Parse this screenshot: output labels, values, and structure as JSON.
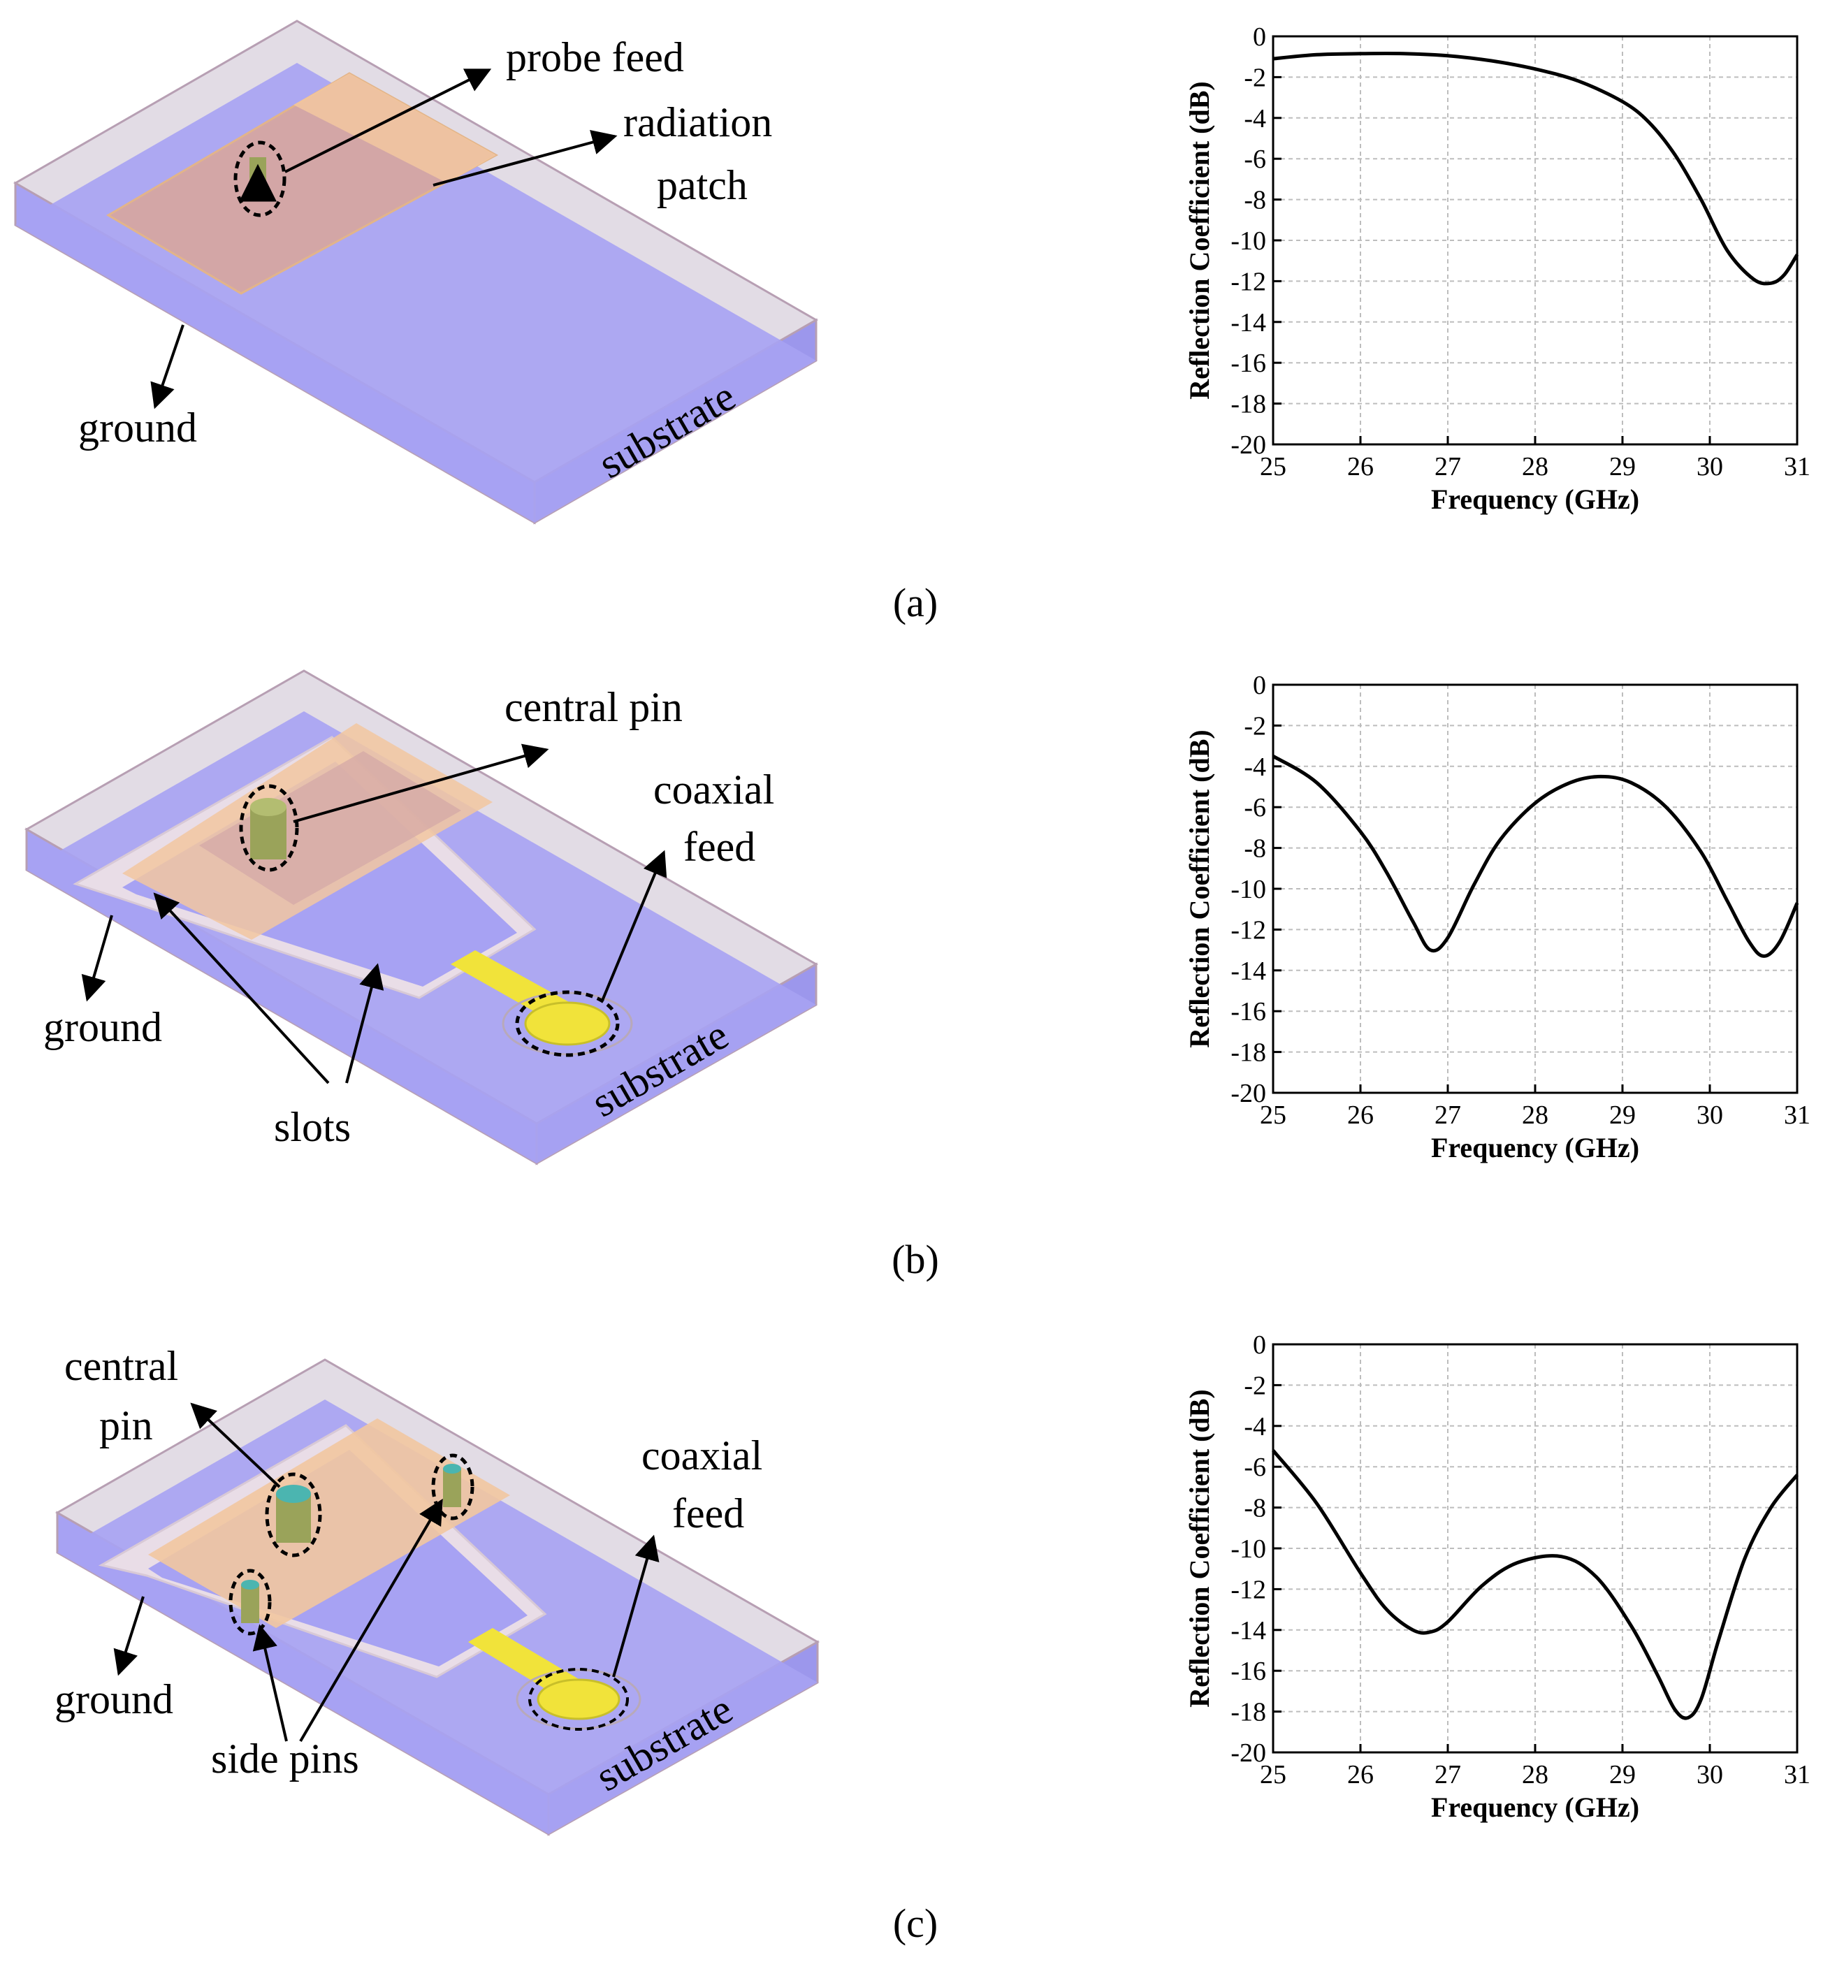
{
  "figure": {
    "panels": [
      {
        "caption": "(a)",
        "diagram_labels": {
          "probe_feed": "probe feed",
          "radiation_line1": "radiation",
          "radiation_line2": "patch",
          "ground": "ground",
          "substrate": "substrate"
        }
      },
      {
        "caption": "(b)",
        "diagram_labels": {
          "central_pin": "central pin",
          "coaxial_line1": "coaxial",
          "coaxial_line2": "feed",
          "ground": "ground",
          "slots": "slots",
          "substrate": "substrate"
        }
      },
      {
        "caption": "(c)",
        "diagram_labels": {
          "central_line1": "central",
          "central_line2": "pin",
          "coaxial_line1": "coaxial",
          "coaxial_line2": "feed",
          "ground": "ground",
          "side_pins": "side pins",
          "substrate": "substrate"
        }
      }
    ],
    "colors": {
      "substrate_fill": "#a7a2f3",
      "substrate_edge": "#c8b3c2",
      "patch_fill": "#d3a6a6",
      "patch_orange": "#f2c7a0",
      "feed_yellow": "#f1e33a",
      "pin_green": "#8ea35a",
      "pin_cyan": "#4bb5b0",
      "curve": "#000000"
    }
  },
  "chart_data": [
    {
      "type": "line",
      "title": "",
      "xlabel": "Frequency (GHz)",
      "ylabel": "Reflection Coefficient (dB)",
      "xlim": [
        25,
        31
      ],
      "ylim": [
        -20,
        0
      ],
      "xticks": [
        25,
        26,
        27,
        28,
        29,
        30,
        31
      ],
      "yticks": [
        0,
        -2,
        -4,
        -6,
        -8,
        -10,
        -12,
        -14,
        -16,
        -18,
        -20
      ],
      "grid": true,
      "series": [
        {
          "name": "(a)",
          "x": [
            25,
            25.5,
            26,
            26.5,
            27,
            27.5,
            28,
            28.5,
            29,
            29.3,
            29.6,
            29.9,
            30.2,
            30.5,
            30.7,
            30.85,
            31
          ],
          "y": [
            -1.1,
            -0.9,
            -0.85,
            -0.85,
            -0.95,
            -1.2,
            -1.6,
            -2.2,
            -3.2,
            -4.2,
            -5.8,
            -8.0,
            -10.5,
            -11.9,
            -12.1,
            -11.7,
            -10.7
          ]
        }
      ]
    },
    {
      "type": "line",
      "title": "",
      "xlabel": "Frequency (GHz)",
      "ylabel": "Reflection Coefficient (dB)",
      "xlim": [
        25,
        31
      ],
      "ylim": [
        -20,
        0
      ],
      "xticks": [
        25,
        26,
        27,
        28,
        29,
        30,
        31
      ],
      "yticks": [
        0,
        -2,
        -4,
        -6,
        -8,
        -10,
        -12,
        -14,
        -16,
        -18,
        -20
      ],
      "grid": true,
      "series": [
        {
          "name": "(b)",
          "x": [
            25,
            25.5,
            26,
            26.3,
            26.6,
            26.8,
            27.0,
            27.3,
            27.6,
            28.0,
            28.4,
            28.75,
            29.1,
            29.5,
            29.9,
            30.2,
            30.45,
            30.62,
            30.8,
            31
          ],
          "y": [
            -3.5,
            -4.8,
            -7.2,
            -9.2,
            -11.6,
            -13.0,
            -12.4,
            -9.8,
            -7.6,
            -5.8,
            -4.8,
            -4.5,
            -4.8,
            -6.0,
            -8.2,
            -10.6,
            -12.6,
            -13.3,
            -12.6,
            -10.7
          ]
        }
      ]
    },
    {
      "type": "line",
      "title": "",
      "xlabel": "Frequency (GHz)",
      "ylabel": "Reflection Coefficient (dB)",
      "xlim": [
        25,
        31
      ],
      "ylim": [
        -20,
        0
      ],
      "xticks": [
        25,
        26,
        27,
        28,
        29,
        30,
        31
      ],
      "yticks": [
        0,
        -2,
        -4,
        -6,
        -8,
        -10,
        -12,
        -14,
        -16,
        -18,
        -20
      ],
      "grid": true,
      "series": [
        {
          "name": "(c)",
          "x": [
            25,
            25.5,
            26,
            26.3,
            26.6,
            26.8,
            27.0,
            27.4,
            27.8,
            28.3,
            28.7,
            29.1,
            29.4,
            29.6,
            29.75,
            29.9,
            30.1,
            30.4,
            30.7,
            31
          ],
          "y": [
            -5.2,
            -7.8,
            -11.2,
            -13.0,
            -14.0,
            -14.1,
            -13.6,
            -11.8,
            -10.7,
            -10.4,
            -11.4,
            -13.8,
            -16.2,
            -17.9,
            -18.3,
            -17.4,
            -14.5,
            -10.5,
            -8.0,
            -6.4
          ]
        }
      ]
    }
  ]
}
